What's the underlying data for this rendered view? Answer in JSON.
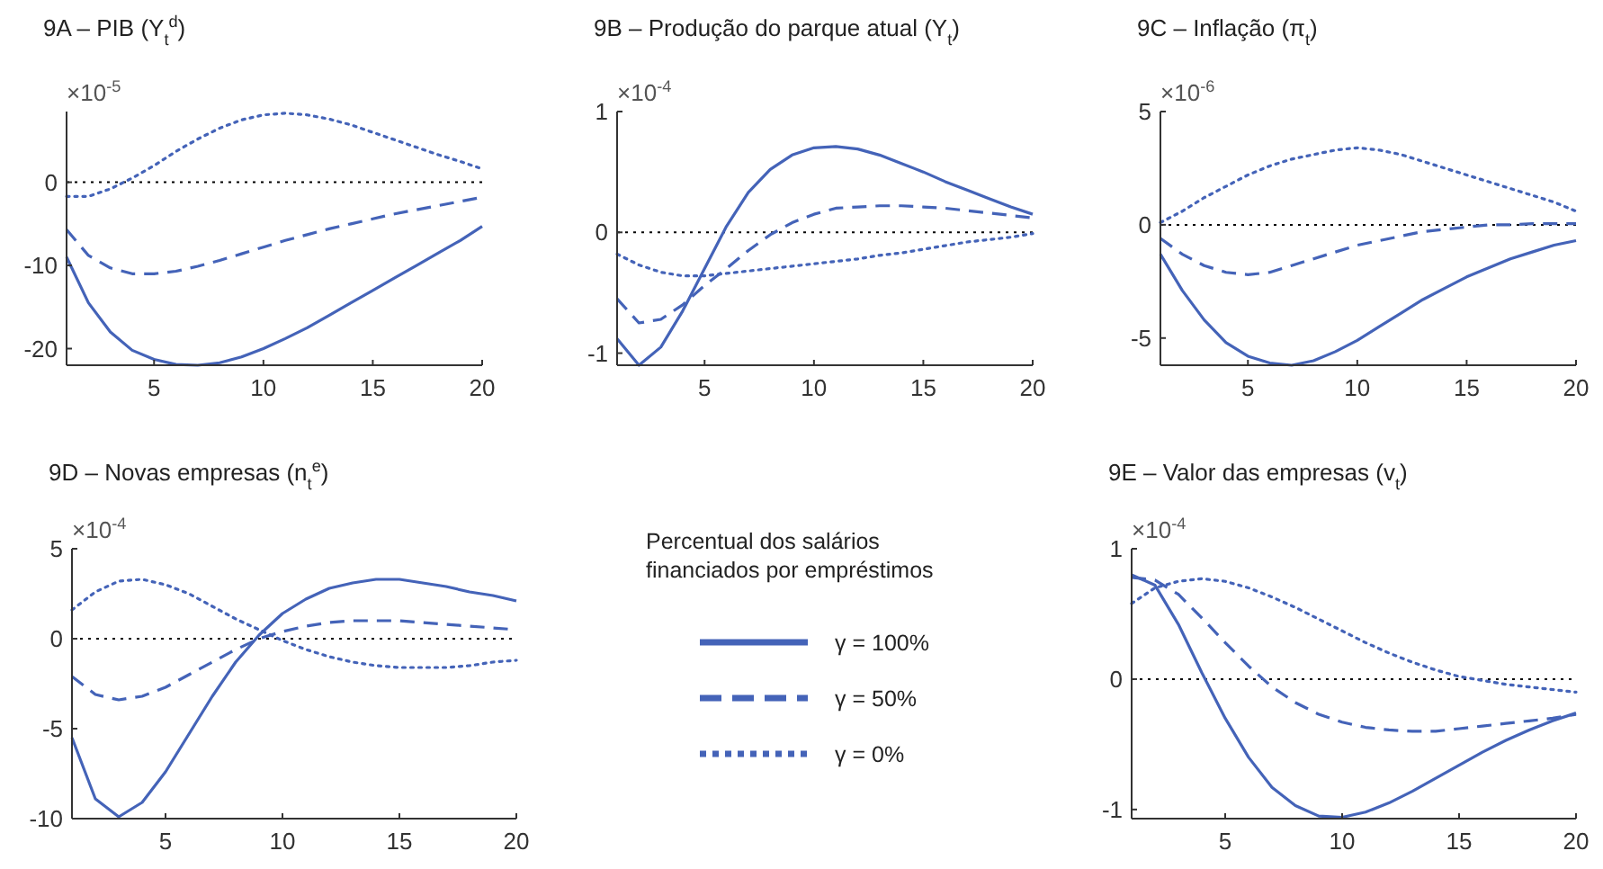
{
  "chart_data": [
    {
      "type": "line",
      "title": "9A – PIB (Y$_{t}$$^{d}$)",
      "annotations": [
        "×10$^{-5}$"
      ],
      "x": [
        1,
        2,
        3,
        4,
        5,
        6,
        7,
        8,
        9,
        10,
        11,
        12,
        13,
        14,
        15,
        16,
        17,
        18,
        19,
        20
      ],
      "xlim": [
        1,
        20
      ],
      "xticks": [
        5,
        10,
        15,
        20
      ],
      "ylim": [
        -22,
        8.5
      ],
      "yticks": [
        -20,
        -10,
        0
      ],
      "grid": false,
      "legend": false,
      "ref_lines": [
        {
          "axis": "y",
          "value": 0,
          "color": "#000000",
          "line_style": "dotted"
        }
      ],
      "series": [
        {
          "color": "#4463b8",
          "line_style": "solid",
          "values": [
            -9,
            -14.5,
            -18,
            -20.2,
            -21.3,
            -21.9,
            -22,
            -21.7,
            -21,
            -20,
            -18.8,
            -17.5,
            -16,
            -14.5,
            -13,
            -11.5,
            -10,
            -8.5,
            -7,
            -5.3
          ]
        },
        {
          "color": "#4463b8",
          "line_style": "dashed",
          "values": [
            -5.7,
            -8.8,
            -10.3,
            -11,
            -11,
            -10.7,
            -10.1,
            -9.4,
            -8.6,
            -7.8,
            -7,
            -6.3,
            -5.6,
            -5,
            -4.4,
            -3.8,
            -3.3,
            -2.8,
            -2.3,
            -1.8
          ]
        },
        {
          "color": "#4463b8",
          "line_style": "dotted",
          "values": [
            -1.7,
            -1.7,
            -0.8,
            0.5,
            2,
            3.7,
            5.2,
            6.5,
            7.5,
            8.1,
            8.3,
            8.1,
            7.6,
            6.9,
            6,
            5.1,
            4.2,
            3.3,
            2.5,
            1.6
          ]
        }
      ]
    },
    {
      "type": "line",
      "title": "9B – Produção do parque atual (Y$_{t}$)",
      "annotations": [
        "×10$^{-4}$"
      ],
      "x": [
        1,
        2,
        3,
        4,
        5,
        6,
        7,
        8,
        9,
        10,
        11,
        12,
        13,
        14,
        15,
        16,
        17,
        18,
        19,
        20
      ],
      "xlim": [
        1,
        20
      ],
      "xticks": [
        5,
        10,
        15,
        20
      ],
      "ylim": [
        -1.1,
        1
      ],
      "yticks": [
        -1,
        0,
        1
      ],
      "grid": false,
      "legend": false,
      "ref_lines": [
        {
          "axis": "y",
          "value": 0,
          "color": "#000000",
          "line_style": "dotted"
        }
      ],
      "series": [
        {
          "color": "#4463b8",
          "line_style": "solid",
          "values": [
            -0.88,
            -1.1,
            -0.95,
            -0.65,
            -0.3,
            0.05,
            0.33,
            0.52,
            0.64,
            0.7,
            0.71,
            0.69,
            0.64,
            0.57,
            0.5,
            0.42,
            0.35,
            0.28,
            0.21,
            0.15
          ]
        },
        {
          "color": "#4463b8",
          "line_style": "dashed",
          "values": [
            -0.55,
            -0.75,
            -0.72,
            -0.6,
            -0.44,
            -0.3,
            -0.15,
            -0.02,
            0.08,
            0.15,
            0.2,
            0.21,
            0.22,
            0.22,
            0.21,
            0.2,
            0.18,
            0.16,
            0.14,
            0.12
          ]
        },
        {
          "color": "#4463b8",
          "line_style": "dotted",
          "values": [
            -0.18,
            -0.27,
            -0.33,
            -0.36,
            -0.36,
            -0.34,
            -0.32,
            -0.3,
            -0.28,
            -0.26,
            -0.24,
            -0.22,
            -0.19,
            -0.17,
            -0.14,
            -0.11,
            -0.08,
            -0.06,
            -0.04,
            -0.01
          ]
        }
      ]
    },
    {
      "type": "line",
      "title": "9C – Inflação (π$_{t}$)",
      "annotations": [
        "×10$^{-6}$"
      ],
      "x": [
        1,
        2,
        3,
        4,
        5,
        6,
        7,
        8,
        9,
        10,
        11,
        12,
        13,
        14,
        15,
        16,
        17,
        18,
        19,
        20
      ],
      "xlim": [
        1,
        20
      ],
      "xticks": [
        5,
        10,
        15,
        20
      ],
      "ylim": [
        -6.2,
        5
      ],
      "yticks": [
        -5,
        0,
        5
      ],
      "grid": false,
      "legend": false,
      "ref_lines": [
        {
          "axis": "y",
          "value": 0,
          "color": "#000000",
          "line_style": "dotted"
        }
      ],
      "series": [
        {
          "color": "#4463b8",
          "line_style": "solid",
          "values": [
            -1.3,
            -2.9,
            -4.2,
            -5.2,
            -5.8,
            -6.1,
            -6.2,
            -6,
            -5.6,
            -5.1,
            -4.5,
            -3.9,
            -3.3,
            -2.8,
            -2.3,
            -1.9,
            -1.5,
            -1.2,
            -0.9,
            -0.7
          ]
        },
        {
          "color": "#4463b8",
          "line_style": "dashed",
          "values": [
            -0.6,
            -1.3,
            -1.8,
            -2.1,
            -2.2,
            -2.1,
            -1.8,
            -1.5,
            -1.2,
            -0.9,
            -0.7,
            -0.5,
            -0.3,
            -0.2,
            -0.1,
            0,
            0,
            0.05,
            0.05,
            0.05
          ]
        },
        {
          "color": "#4463b8",
          "line_style": "dotted",
          "values": [
            0.1,
            0.6,
            1.2,
            1.7,
            2.2,
            2.6,
            2.9,
            3.1,
            3.3,
            3.4,
            3.3,
            3.1,
            2.8,
            2.5,
            2.2,
            1.9,
            1.6,
            1.3,
            1,
            0.6
          ]
        }
      ]
    },
    {
      "type": "line",
      "title": "9D – Novas empresas (n$_{t}$$^{e}$)",
      "annotations": [
        "×10$^{-4}$"
      ],
      "legend_title": "Percentual dos salários financiados por empréstimos",
      "x": [
        1,
        2,
        3,
        4,
        5,
        6,
        7,
        8,
        9,
        10,
        11,
        12,
        13,
        14,
        15,
        16,
        17,
        18,
        19,
        20
      ],
      "xlim": [
        1,
        20
      ],
      "xticks": [
        5,
        10,
        15,
        20
      ],
      "ylim": [
        -10,
        5
      ],
      "yticks": [
        -10,
        -5,
        0,
        5
      ],
      "grid": false,
      "legend": "right",
      "ref_lines": [
        {
          "axis": "y",
          "value": 0,
          "color": "#000000",
          "line_style": "dotted"
        }
      ],
      "series": [
        {
          "name": "γ = 100%",
          "color": "#4463b8",
          "line_style": "solid",
          "values": [
            -5.5,
            -8.9,
            -9.9,
            -9.1,
            -7.4,
            -5.3,
            -3.2,
            -1.3,
            0.2,
            1.4,
            2.2,
            2.8,
            3.1,
            3.3,
            3.3,
            3.1,
            2.9,
            2.6,
            2.4,
            2.1
          ]
        },
        {
          "name": "γ = 50%",
          "color": "#4463b8",
          "line_style": "dashed",
          "values": [
            -2.1,
            -3.1,
            -3.4,
            -3.2,
            -2.7,
            -2,
            -1.3,
            -0.6,
            0,
            0.4,
            0.7,
            0.9,
            1,
            1,
            1,
            0.9,
            0.8,
            0.7,
            0.6,
            0.5
          ]
        },
        {
          "name": "γ = 0%",
          "color": "#4463b8",
          "line_style": "dotted",
          "values": [
            1.6,
            2.6,
            3.2,
            3.3,
            3,
            2.5,
            1.8,
            1.1,
            0.5,
            -0.1,
            -0.6,
            -1,
            -1.3,
            -1.5,
            -1.6,
            -1.6,
            -1.6,
            -1.5,
            -1.3,
            -1.2
          ]
        }
      ]
    },
    {
      "type": "line",
      "title": "9E – Valor das empresas (v$_{t}$)",
      "annotations": [
        "×10$^{-4}$"
      ],
      "x": [
        1,
        2,
        3,
        4,
        5,
        6,
        7,
        8,
        9,
        10,
        11,
        12,
        13,
        14,
        15,
        16,
        17,
        18,
        19,
        20
      ],
      "xlim": [
        1,
        20
      ],
      "xticks": [
        5,
        10,
        15,
        20
      ],
      "ylim": [
        -1.07,
        1
      ],
      "yticks": [
        -1,
        0,
        1
      ],
      "grid": false,
      "legend": false,
      "ref_lines": [
        {
          "axis": "y",
          "value": 0,
          "color": "#000000",
          "line_style": "dotted"
        }
      ],
      "series": [
        {
          "color": "#4463b8",
          "line_style": "solid",
          "values": [
            0.8,
            0.72,
            0.42,
            0.05,
            -0.3,
            -0.6,
            -0.83,
            -0.97,
            -1.05,
            -1.06,
            -1.02,
            -0.95,
            -0.86,
            -0.76,
            -0.66,
            -0.56,
            -0.47,
            -0.39,
            -0.32,
            -0.26
          ]
        },
        {
          "color": "#4463b8",
          "line_style": "dashed",
          "values": [
            0.78,
            0.76,
            0.65,
            0.47,
            0.28,
            0.1,
            -0.06,
            -0.18,
            -0.27,
            -0.33,
            -0.37,
            -0.39,
            -0.4,
            -0.4,
            -0.38,
            -0.36,
            -0.34,
            -0.32,
            -0.3,
            -0.27
          ]
        },
        {
          "color": "#4463b8",
          "line_style": "dotted",
          "values": [
            0.58,
            0.7,
            0.75,
            0.77,
            0.75,
            0.7,
            0.63,
            0.55,
            0.46,
            0.37,
            0.28,
            0.2,
            0.13,
            0.07,
            0.02,
            -0.01,
            -0.04,
            -0.06,
            -0.08,
            -0.1
          ]
        }
      ]
    }
  ]
}
